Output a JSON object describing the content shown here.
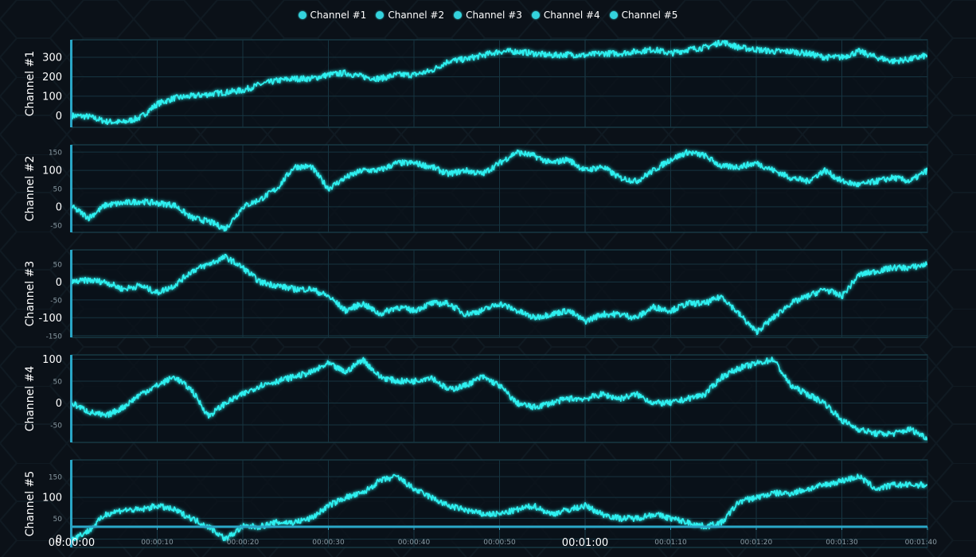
{
  "colors": {
    "background": "#0b1118",
    "plot_border": "#1d4a57",
    "grid": "#163440",
    "trace": "#2ff0f0",
    "axis_text": "#ffffff",
    "minor_tick_text": "#8a9aa3",
    "accent_bar": "#2aa6c6"
  },
  "legend": [
    {
      "name": "Channel #1",
      "icon": "circle-marker-icon"
    },
    {
      "name": "Channel #2",
      "icon": "circle-marker-icon"
    },
    {
      "name": "Channel #3",
      "icon": "circle-marker-icon"
    },
    {
      "name": "Channel #4",
      "icon": "circle-marker-icon"
    },
    {
      "name": "Channel #5",
      "icon": "circle-marker-icon"
    }
  ],
  "chart_data": {
    "type": "line",
    "x_unit": "seconds",
    "xlim": [
      0,
      100
    ],
    "x_ticks": [
      {
        "value": 0,
        "label": "00:00:00",
        "major": true
      },
      {
        "value": 10,
        "label": "00:00:10",
        "major": false
      },
      {
        "value": 20,
        "label": "00:00:20",
        "major": false
      },
      {
        "value": 30,
        "label": "00:00:30",
        "major": false
      },
      {
        "value": 40,
        "label": "00:00:40",
        "major": false
      },
      {
        "value": 50,
        "label": "00:00:50",
        "major": false
      },
      {
        "value": 60,
        "label": "00:01:00",
        "major": true
      },
      {
        "value": 70,
        "label": "00:01:10",
        "major": false
      },
      {
        "value": 80,
        "label": "00:01:20",
        "major": false
      },
      {
        "value": 90,
        "label": "00:01:30",
        "major": false
      },
      {
        "value": 100,
        "label": "00:01:40",
        "major": false
      }
    ],
    "grid": true,
    "legend_position": "top-center",
    "series": [
      {
        "name": "Channel #1",
        "ylabel": "Channel #1",
        "ylim": [
          -60,
          390
        ],
        "y_ticks": [
          {
            "v": 0,
            "l": "0",
            "major": true
          },
          {
            "v": 100,
            "l": "100",
            "major": true
          },
          {
            "v": 200,
            "l": "200",
            "major": true
          },
          {
            "v": 300,
            "l": "300",
            "major": true
          }
        ],
        "x": [
          0,
          2,
          4,
          6,
          8,
          10,
          12,
          14,
          16,
          18,
          20,
          22,
          24,
          26,
          28,
          30,
          32,
          34,
          36,
          38,
          40,
          42,
          44,
          46,
          48,
          50,
          52,
          54,
          56,
          58,
          60,
          62,
          64,
          66,
          68,
          70,
          72,
          74,
          76,
          78,
          80,
          82,
          84,
          86,
          88,
          90,
          92,
          94,
          96,
          98,
          100
        ],
        "values": [
          0,
          -5,
          -30,
          -35,
          -10,
          60,
          90,
          100,
          110,
          120,
          130,
          160,
          180,
          190,
          190,
          210,
          220,
          200,
          190,
          210,
          210,
          230,
          280,
          290,
          310,
          330,
          330,
          320,
          310,
          315,
          310,
          320,
          320,
          330,
          340,
          320,
          340,
          350,
          380,
          350,
          340,
          330,
          330,
          320,
          300,
          300,
          330,
          300,
          280,
          290,
          310
        ]
      },
      {
        "name": "Channel #2",
        "ylabel": "Channel #2",
        "ylim": [
          -70,
          170
        ],
        "y_ticks": [
          {
            "v": -50,
            "l": "-50",
            "major": false
          },
          {
            "v": 0,
            "l": "0",
            "major": true
          },
          {
            "v": 50,
            "l": "50",
            "major": false
          },
          {
            "v": 100,
            "l": "100",
            "major": true
          },
          {
            "v": 150,
            "l": "150",
            "major": false
          }
        ],
        "x": [
          0,
          2,
          4,
          6,
          8,
          10,
          12,
          14,
          16,
          18,
          20,
          22,
          24,
          26,
          28,
          30,
          32,
          34,
          36,
          38,
          40,
          42,
          44,
          46,
          48,
          50,
          52,
          54,
          56,
          58,
          60,
          62,
          64,
          66,
          68,
          70,
          72,
          74,
          76,
          78,
          80,
          82,
          84,
          86,
          88,
          90,
          92,
          94,
          96,
          98,
          100
        ],
        "values": [
          0,
          -30,
          5,
          10,
          15,
          10,
          5,
          -30,
          -40,
          -60,
          0,
          20,
          50,
          110,
          110,
          50,
          80,
          100,
          100,
          120,
          120,
          110,
          90,
          100,
          90,
          120,
          150,
          140,
          120,
          130,
          100,
          110,
          80,
          70,
          100,
          130,
          150,
          140,
          110,
          110,
          120,
          100,
          80,
          70,
          100,
          70,
          60,
          70,
          80,
          70,
          100
        ]
      },
      {
        "name": "Channel #3",
        "ylabel": "Channel #3",
        "ylim": [
          -155,
          90
        ],
        "y_ticks": [
          {
            "v": -150,
            "l": "-150",
            "major": false
          },
          {
            "v": -100,
            "l": "-100",
            "major": true
          },
          {
            "v": -50,
            "l": "-50",
            "major": false
          },
          {
            "v": 0,
            "l": "0",
            "major": true
          },
          {
            "v": 50,
            "l": "50",
            "major": false
          }
        ],
        "x": [
          0,
          2,
          4,
          6,
          8,
          10,
          12,
          14,
          16,
          18,
          20,
          22,
          24,
          26,
          28,
          30,
          32,
          34,
          36,
          38,
          40,
          42,
          44,
          46,
          48,
          50,
          52,
          54,
          56,
          58,
          60,
          62,
          64,
          66,
          68,
          70,
          72,
          74,
          76,
          78,
          80,
          82,
          84,
          86,
          88,
          90,
          92,
          94,
          96,
          98,
          100
        ],
        "values": [
          0,
          5,
          0,
          -20,
          -10,
          -30,
          -10,
          30,
          50,
          70,
          40,
          0,
          -10,
          -20,
          -20,
          -40,
          -80,
          -60,
          -90,
          -70,
          -80,
          -60,
          -60,
          -90,
          -80,
          -60,
          -80,
          -100,
          -90,
          -80,
          -110,
          -90,
          -90,
          -100,
          -70,
          -80,
          -60,
          -60,
          -40,
          -90,
          -140,
          -100,
          -60,
          -40,
          -20,
          -40,
          20,
          30,
          40,
          40,
          50
        ]
      },
      {
        "name": "Channel #4",
        "ylabel": "Channel #4",
        "ylim": [
          -90,
          110
        ],
        "y_ticks": [
          {
            "v": -50,
            "l": "-50",
            "major": false
          },
          {
            "v": 0,
            "l": "0",
            "major": true
          },
          {
            "v": 50,
            "l": "50",
            "major": false
          },
          {
            "v": 100,
            "l": "100",
            "major": true
          }
        ],
        "x": [
          0,
          2,
          4,
          6,
          8,
          10,
          12,
          14,
          16,
          18,
          20,
          22,
          24,
          26,
          28,
          30,
          32,
          34,
          36,
          38,
          40,
          42,
          44,
          46,
          48,
          50,
          52,
          54,
          56,
          58,
          60,
          62,
          64,
          66,
          68,
          70,
          72,
          74,
          76,
          78,
          80,
          82,
          84,
          86,
          88,
          90,
          92,
          94,
          96,
          98,
          100
        ],
        "values": [
          0,
          -20,
          -30,
          -10,
          20,
          40,
          60,
          30,
          -30,
          0,
          20,
          40,
          50,
          60,
          70,
          90,
          70,
          100,
          60,
          50,
          50,
          60,
          30,
          40,
          60,
          40,
          0,
          -10,
          0,
          10,
          10,
          20,
          10,
          20,
          0,
          0,
          10,
          20,
          60,
          80,
          90,
          100,
          40,
          20,
          0,
          -40,
          -60,
          -70,
          -70,
          -60,
          -80
        ]
      },
      {
        "name": "Channel #5",
        "ylabel": "Channel #5",
        "ylim": [
          -20,
          190
        ],
        "y_ticks": [
          {
            "v": 0,
            "l": "0",
            "major": true
          },
          {
            "v": 50,
            "l": "50",
            "major": false
          },
          {
            "v": 100,
            "l": "100",
            "major": true
          },
          {
            "v": 150,
            "l": "150",
            "major": false
          }
        ],
        "x": [
          0,
          2,
          4,
          6,
          8,
          10,
          12,
          14,
          16,
          18,
          20,
          22,
          24,
          26,
          28,
          30,
          32,
          34,
          36,
          38,
          40,
          42,
          44,
          46,
          48,
          50,
          52,
          54,
          56,
          58,
          60,
          62,
          64,
          66,
          68,
          70,
          72,
          74,
          76,
          78,
          80,
          82,
          84,
          86,
          88,
          90,
          92,
          94,
          96,
          98,
          100
        ],
        "values": [
          0,
          20,
          60,
          70,
          70,
          80,
          70,
          50,
          30,
          0,
          30,
          30,
          40,
          40,
          50,
          80,
          100,
          110,
          140,
          150,
          120,
          100,
          80,
          70,
          60,
          60,
          70,
          80,
          60,
          70,
          80,
          60,
          50,
          50,
          60,
          50,
          40,
          30,
          40,
          90,
          100,
          110,
          110,
          120,
          130,
          140,
          150,
          120,
          130,
          130,
          130
        ]
      }
    ]
  }
}
